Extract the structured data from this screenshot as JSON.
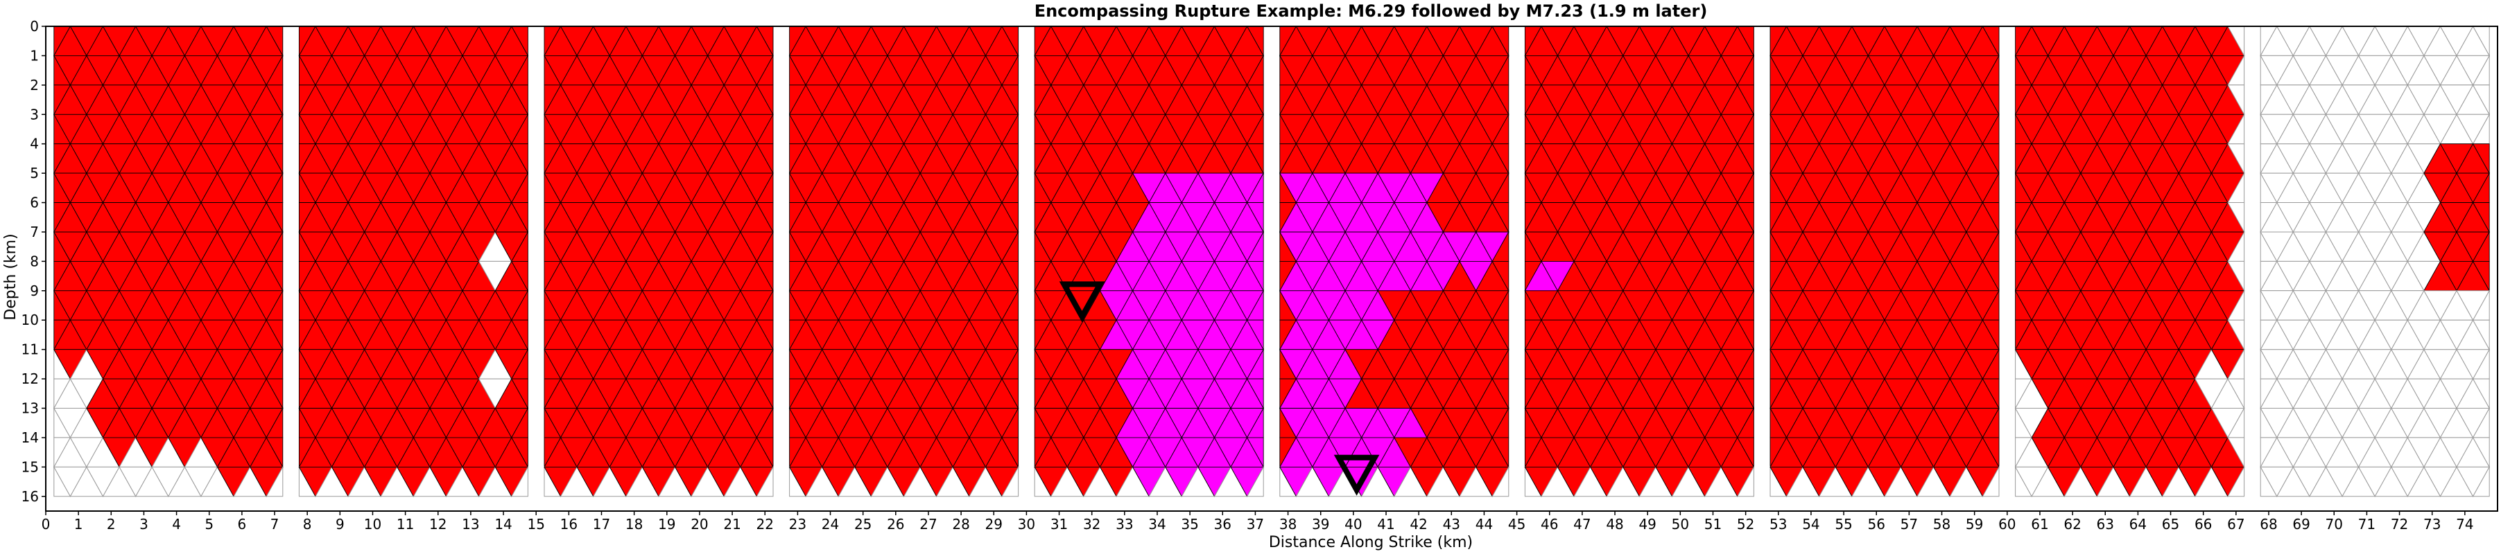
{
  "chart_data": {
    "type": "heatmap",
    "title": "Encompassing Rupture Example: M6.29 followed by M7.23 (1.9 m later)",
    "xlabel": "Distance Along Strike (km)",
    "ylabel": "Depth (km)",
    "xlim": [
      0,
      75
    ],
    "ylim": [
      16.5,
      0
    ],
    "x_ticks": [
      0,
      1,
      2,
      3,
      4,
      5,
      6,
      7,
      8,
      9,
      10,
      11,
      12,
      13,
      14,
      15,
      16,
      17,
      18,
      19,
      20,
      21,
      22,
      23,
      24,
      25,
      26,
      27,
      28,
      29,
      30,
      31,
      32,
      33,
      34,
      35,
      36,
      37,
      38,
      39,
      40,
      41,
      42,
      43,
      44,
      45,
      46,
      47,
      48,
      49,
      50,
      51,
      52,
      53,
      54,
      55,
      56,
      57,
      58,
      59,
      60,
      61,
      62,
      63,
      64,
      65,
      66,
      67,
      68,
      69,
      70,
      71,
      72,
      73,
      74
    ],
    "y_ticks": [
      0,
      1,
      2,
      3,
      4,
      5,
      6,
      7,
      8,
      9,
      10,
      11,
      12,
      13,
      14,
      15,
      16
    ],
    "fault_segments": [
      {
        "x_start": 0,
        "x_end": 7.5
      },
      {
        "x_start": 7.5,
        "x_end": 15
      },
      {
        "x_start": 15,
        "x_end": 22.5
      },
      {
        "x_start": 22.5,
        "x_end": 30
      },
      {
        "x_start": 30,
        "x_end": 37.5
      },
      {
        "x_start": 37.5,
        "x_end": 45
      },
      {
        "x_start": 45,
        "x_end": 52.5
      },
      {
        "x_start": 52.5,
        "x_end": 60
      },
      {
        "x_start": 60,
        "x_end": 67.5
      },
      {
        "x_start": 67.5,
        "x_end": 75
      }
    ],
    "fault_depth_range": [
      0,
      15.5
    ],
    "colors": {
      "rupture_red": "#ff0000",
      "rupture_magenta": "#ff00ff",
      "unruptured": "#ffffff",
      "edge": "#000000",
      "unruptured_edge": "#9a9a9a"
    },
    "red_regions": [
      {
        "x_start": 0,
        "x_end": 7.5,
        "y_top": 0,
        "y_bottom": 11.5
      },
      {
        "x_start": 1.5,
        "x_end": 7.5,
        "y_top": 11.5,
        "y_bottom": 14.5
      },
      {
        "x_start": 5.5,
        "x_end": 7.5,
        "y_top": 14.5,
        "y_bottom": 15.5
      },
      {
        "x_start": 7.5,
        "x_end": 60,
        "y_top": 0,
        "y_bottom": 15.5
      },
      {
        "x_start": 60,
        "x_end": 67,
        "y_top": 0,
        "y_bottom": 11.5
      },
      {
        "x_start": 61,
        "x_end": 66,
        "y_top": 11.5,
        "y_bottom": 13.5
      },
      {
        "x_start": 61,
        "x_end": 67,
        "y_top": 13.5,
        "y_bottom": 15.5
      },
      {
        "x_start": 73,
        "x_end": 75,
        "y_top": 4,
        "y_bottom": 9
      }
    ],
    "magenta_regions": [
      {
        "x_start": 33.5,
        "x_end": 37.5,
        "y_top": 5,
        "y_bottom": 7.5
      },
      {
        "x_start": 32.5,
        "x_end": 37.5,
        "y_top": 7.5,
        "y_bottom": 11
      },
      {
        "x_start": 33,
        "x_end": 37.5,
        "y_top": 11,
        "y_bottom": 15.5
      },
      {
        "x_start": 38,
        "x_end": 42.5,
        "y_top": 5,
        "y_bottom": 7
      },
      {
        "x_start": 38,
        "x_end": 44.5,
        "y_top": 7,
        "y_bottom": 8.5
      },
      {
        "x_start": 38,
        "x_end": 43,
        "y_top": 8.5,
        "y_bottom": 9
      },
      {
        "x_start": 38,
        "x_end": 41,
        "y_top": 9,
        "y_bottom": 11
      },
      {
        "x_start": 38,
        "x_end": 40,
        "y_top": 11,
        "y_bottom": 13
      },
      {
        "x_start": 38,
        "x_end": 42,
        "y_top": 13,
        "y_bottom": 14
      },
      {
        "x_start": 38,
        "x_end": 41.5,
        "y_top": 14,
        "y_bottom": 15.5
      },
      {
        "x_start": 45.5,
        "x_end": 46.5,
        "y_top": 7.8,
        "y_bottom": 8.8
      }
    ],
    "white_regions": [
      {
        "x_start": 13.2,
        "x_end": 14,
        "y_top": 7.5,
        "y_bottom": 8.5
      },
      {
        "x_start": 13.2,
        "x_end": 14,
        "y_top": 11.5,
        "y_bottom": 12.5
      }
    ],
    "hypocenters": [
      {
        "name": "M6.29",
        "x": 31.7,
        "y": 9.3
      },
      {
        "name": "M7.23",
        "x": 40.1,
        "y": 15.2
      }
    ]
  }
}
